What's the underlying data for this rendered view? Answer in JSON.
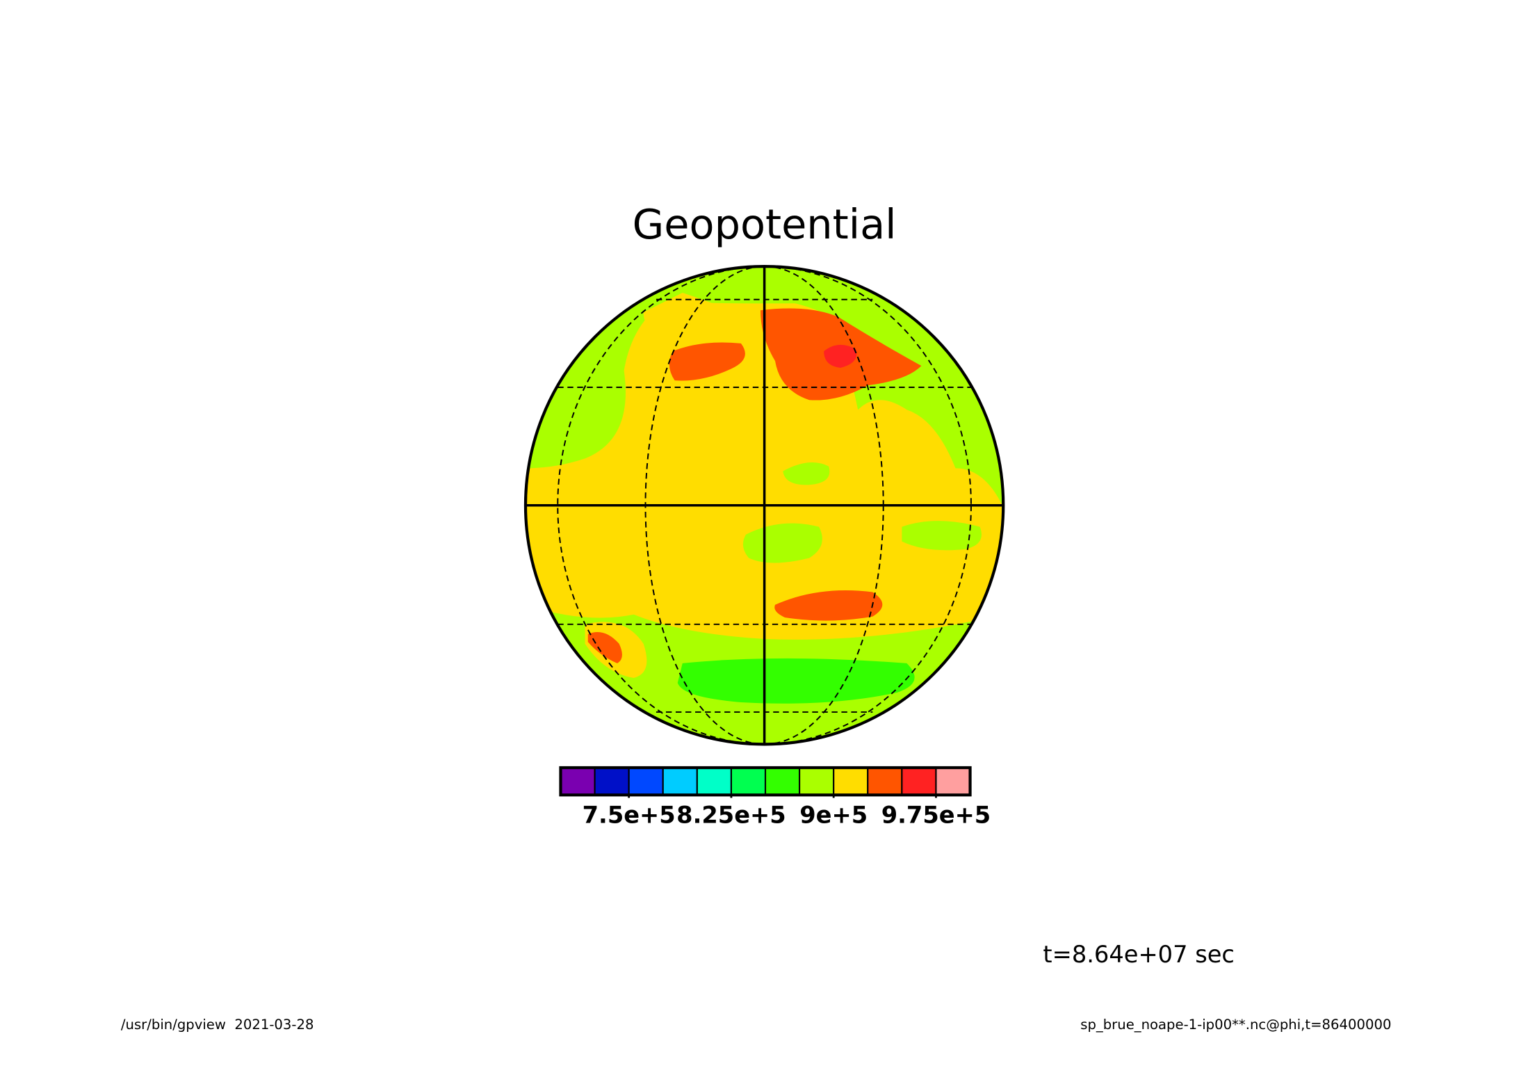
{
  "chart_data": {
    "type": "contour-map",
    "title": "Geopotential",
    "colorbar": {
      "colors": [
        "#7a00b0",
        "#0010c8",
        "#0048ff",
        "#00ccff",
        "#00ffc8",
        "#00ff50",
        "#33ff00",
        "#aaff00",
        "#ffdd00",
        "#ff5500",
        "#ff2222",
        "#ff9f9f"
      ],
      "xlim": [
        700000,
        1000000
      ],
      "xticks": [
        {
          "value": 750000,
          "label": "7.5e+5"
        },
        {
          "value": 825000,
          "label": "8.25e+5"
        },
        {
          "value": 900000,
          "label": "9e+5"
        },
        {
          "value": 975000,
          "label": "9.75e+5"
        }
      ]
    },
    "time_label": "t=8.64e+07 sec",
    "footer_left": "/usr/bin/gpview  2021-03-28",
    "footer_right": "sp_brue_noape-1-ip00**.nc@phi,t=86400000"
  }
}
